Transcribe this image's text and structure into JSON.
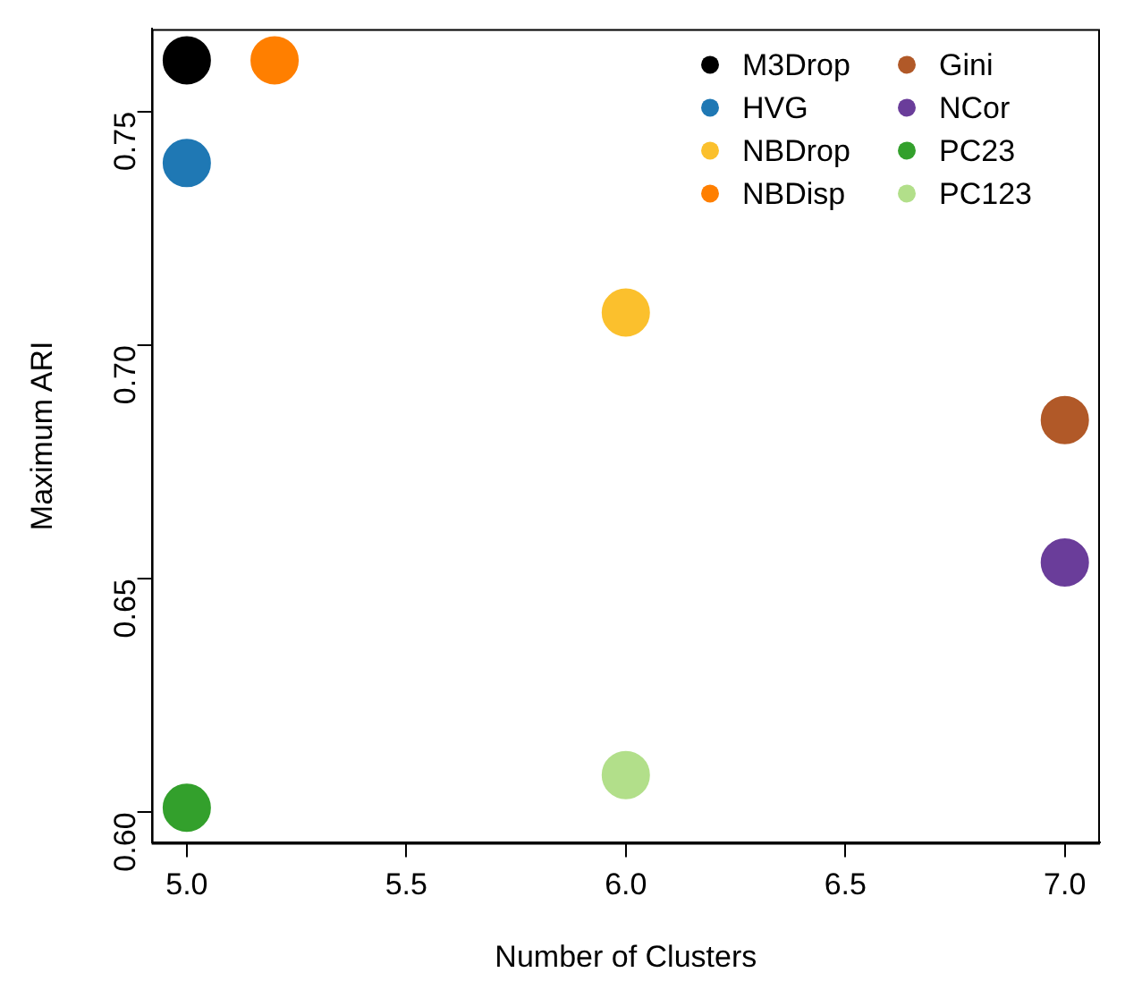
{
  "chart_data": {
    "type": "scatter",
    "xlabel": "Number of Clusters",
    "ylabel": "Maximum ARI",
    "xlim": [
      4.92,
      7.08
    ],
    "ylim": [
      0.5935,
      0.7677
    ],
    "xticks": [
      {
        "value": 5,
        "label": "5.0"
      },
      {
        "value": 5.5,
        "label": "5.5"
      },
      {
        "value": 6,
        "label": "6.0"
      },
      {
        "value": 6.5,
        "label": "6.5"
      },
      {
        "value": 7,
        "label": "7.0"
      }
    ],
    "yticks": [
      {
        "value": 0.6,
        "label": "0.60"
      },
      {
        "value": 0.65,
        "label": "0.65"
      },
      {
        "value": 0.7,
        "label": "0.70"
      },
      {
        "value": 0.75,
        "label": "0.75"
      }
    ],
    "legend": "top right",
    "marker": "circle",
    "series": [
      {
        "name": "M3Drop",
        "color": "#000000",
        "x": [
          5
        ],
        "values": [
          0.761
        ]
      },
      {
        "name": "HVG",
        "color": "#1f78b4",
        "x": [
          5
        ],
        "values": [
          0.739
        ]
      },
      {
        "name": "NBDrop",
        "color": "#fbc02d",
        "x": [
          6
        ],
        "values": [
          0.707
        ]
      },
      {
        "name": "NBDisp",
        "color": "#ff7f00",
        "x": [
          5.2
        ],
        "values": [
          0.761
        ]
      },
      {
        "name": "Gini",
        "color": "#b15928",
        "x": [
          7
        ],
        "values": [
          0.684
        ]
      },
      {
        "name": "NCor",
        "color": "#6a3d9a",
        "x": [
          7
        ],
        "values": [
          0.6535
        ]
      },
      {
        "name": "PC23",
        "color": "#33a02c",
        "x": [
          5
        ],
        "values": [
          0.601
        ]
      },
      {
        "name": "PC123",
        "color": "#b2df8a",
        "x": [
          6
        ],
        "values": [
          0.608
        ]
      }
    ]
  }
}
